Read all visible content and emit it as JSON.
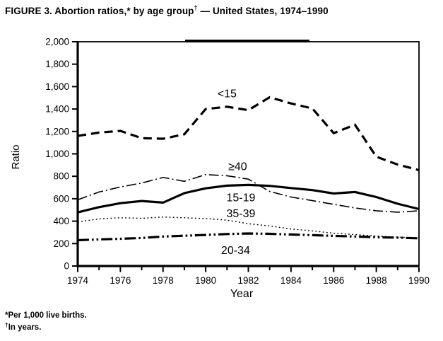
{
  "page": {
    "background": "#ffffff",
    "ink": "#000000"
  },
  "figure_title": {
    "prefix": "FIGURE 3. Abortion ratios,* by age group",
    "sup": "†",
    "suffix": " — United States, 1974–1990"
  },
  "footnotes": {
    "first": "*Per 1,000 live births.",
    "second_sup": "†",
    "second_text": "In years."
  },
  "chart_data": {
    "type": "line",
    "title": "FIGURE 3. Abortion ratios, by age group — United States, 1974–1990",
    "xlabel": "Year",
    "ylabel": "Ratio",
    "xlim": [
      1974,
      1990
    ],
    "ylim": [
      0,
      2000
    ],
    "grid": false,
    "legend": "inline-labels",
    "x": [
      1974,
      1975,
      1976,
      1977,
      1978,
      1979,
      1980,
      1981,
      1982,
      1983,
      1984,
      1985,
      1986,
      1987,
      1988,
      1989,
      1990
    ],
    "xticks": {
      "all_years_have_ticks": true,
      "labeled": [
        "1974",
        "1976",
        "1978",
        "1980",
        "1982",
        "1984",
        "1986",
        "1988",
        "1990"
      ],
      "labeled_values": [
        1974,
        1976,
        1978,
        1980,
        1982,
        1984,
        1986,
        1988,
        1990
      ]
    },
    "yticks": {
      "values": [
        0,
        200,
        400,
        600,
        800,
        1000,
        1200,
        1400,
        1600,
        1800,
        2000
      ],
      "labels": [
        "0",
        "200",
        "400",
        "600",
        "800",
        "1,000",
        "1,200",
        "1,400",
        "1,600",
        "1,800",
        "2,000"
      ]
    },
    "series": [
      {
        "name": "under-15",
        "label": "<15",
        "line_style": "heavy-dashed",
        "stroke_width": 3.2,
        "dash": "12,7",
        "label_pos": [
          1981.0,
          1540
        ],
        "values": [
          1160,
          1190,
          1205,
          1140,
          1135,
          1175,
          1400,
          1420,
          1390,
          1505,
          1450,
          1405,
          1185,
          1260,
          975,
          905,
          855
        ]
      },
      {
        "name": "40-and-over",
        "label": "≥40",
        "line_style": "thin-dash-dot",
        "stroke_width": 1.6,
        "dash": "14,4,2,4",
        "label_pos": [
          1981.5,
          890
        ],
        "values": [
          590,
          660,
          705,
          740,
          790,
          755,
          815,
          805,
          775,
          665,
          615,
          583,
          550,
          518,
          493,
          480,
          492
        ]
      },
      {
        "name": "15-19",
        "label": "15-19",
        "line_style": "heavy-solid",
        "stroke_width": 3.2,
        "dash": null,
        "label_pos": [
          1981.65,
          612
        ],
        "values": [
          478,
          525,
          560,
          580,
          565,
          650,
          693,
          717,
          723,
          715,
          695,
          677,
          647,
          660,
          615,
          555,
          508
        ]
      },
      {
        "name": "35-39",
        "label": "35-39",
        "line_style": "thin-dotted",
        "stroke_width": 1.5,
        "dash": "1.8,3.4",
        "label_pos": [
          1981.65,
          470
        ],
        "values": [
          393,
          420,
          430,
          425,
          437,
          430,
          423,
          409,
          377,
          357,
          330,
          313,
          293,
          280,
          267,
          257,
          253
        ]
      },
      {
        "name": "20-34",
        "label": "20-34",
        "line_style": "heavy-dash-dot-dot",
        "stroke_width": 3.2,
        "dash": "16,4,2.6,4,2.6,4",
        "label_pos": [
          1981.4,
          143
        ],
        "values": [
          230,
          237,
          243,
          250,
          263,
          270,
          277,
          285,
          290,
          287,
          281,
          275,
          269,
          263,
          257,
          253,
          247
        ]
      }
    ]
  }
}
